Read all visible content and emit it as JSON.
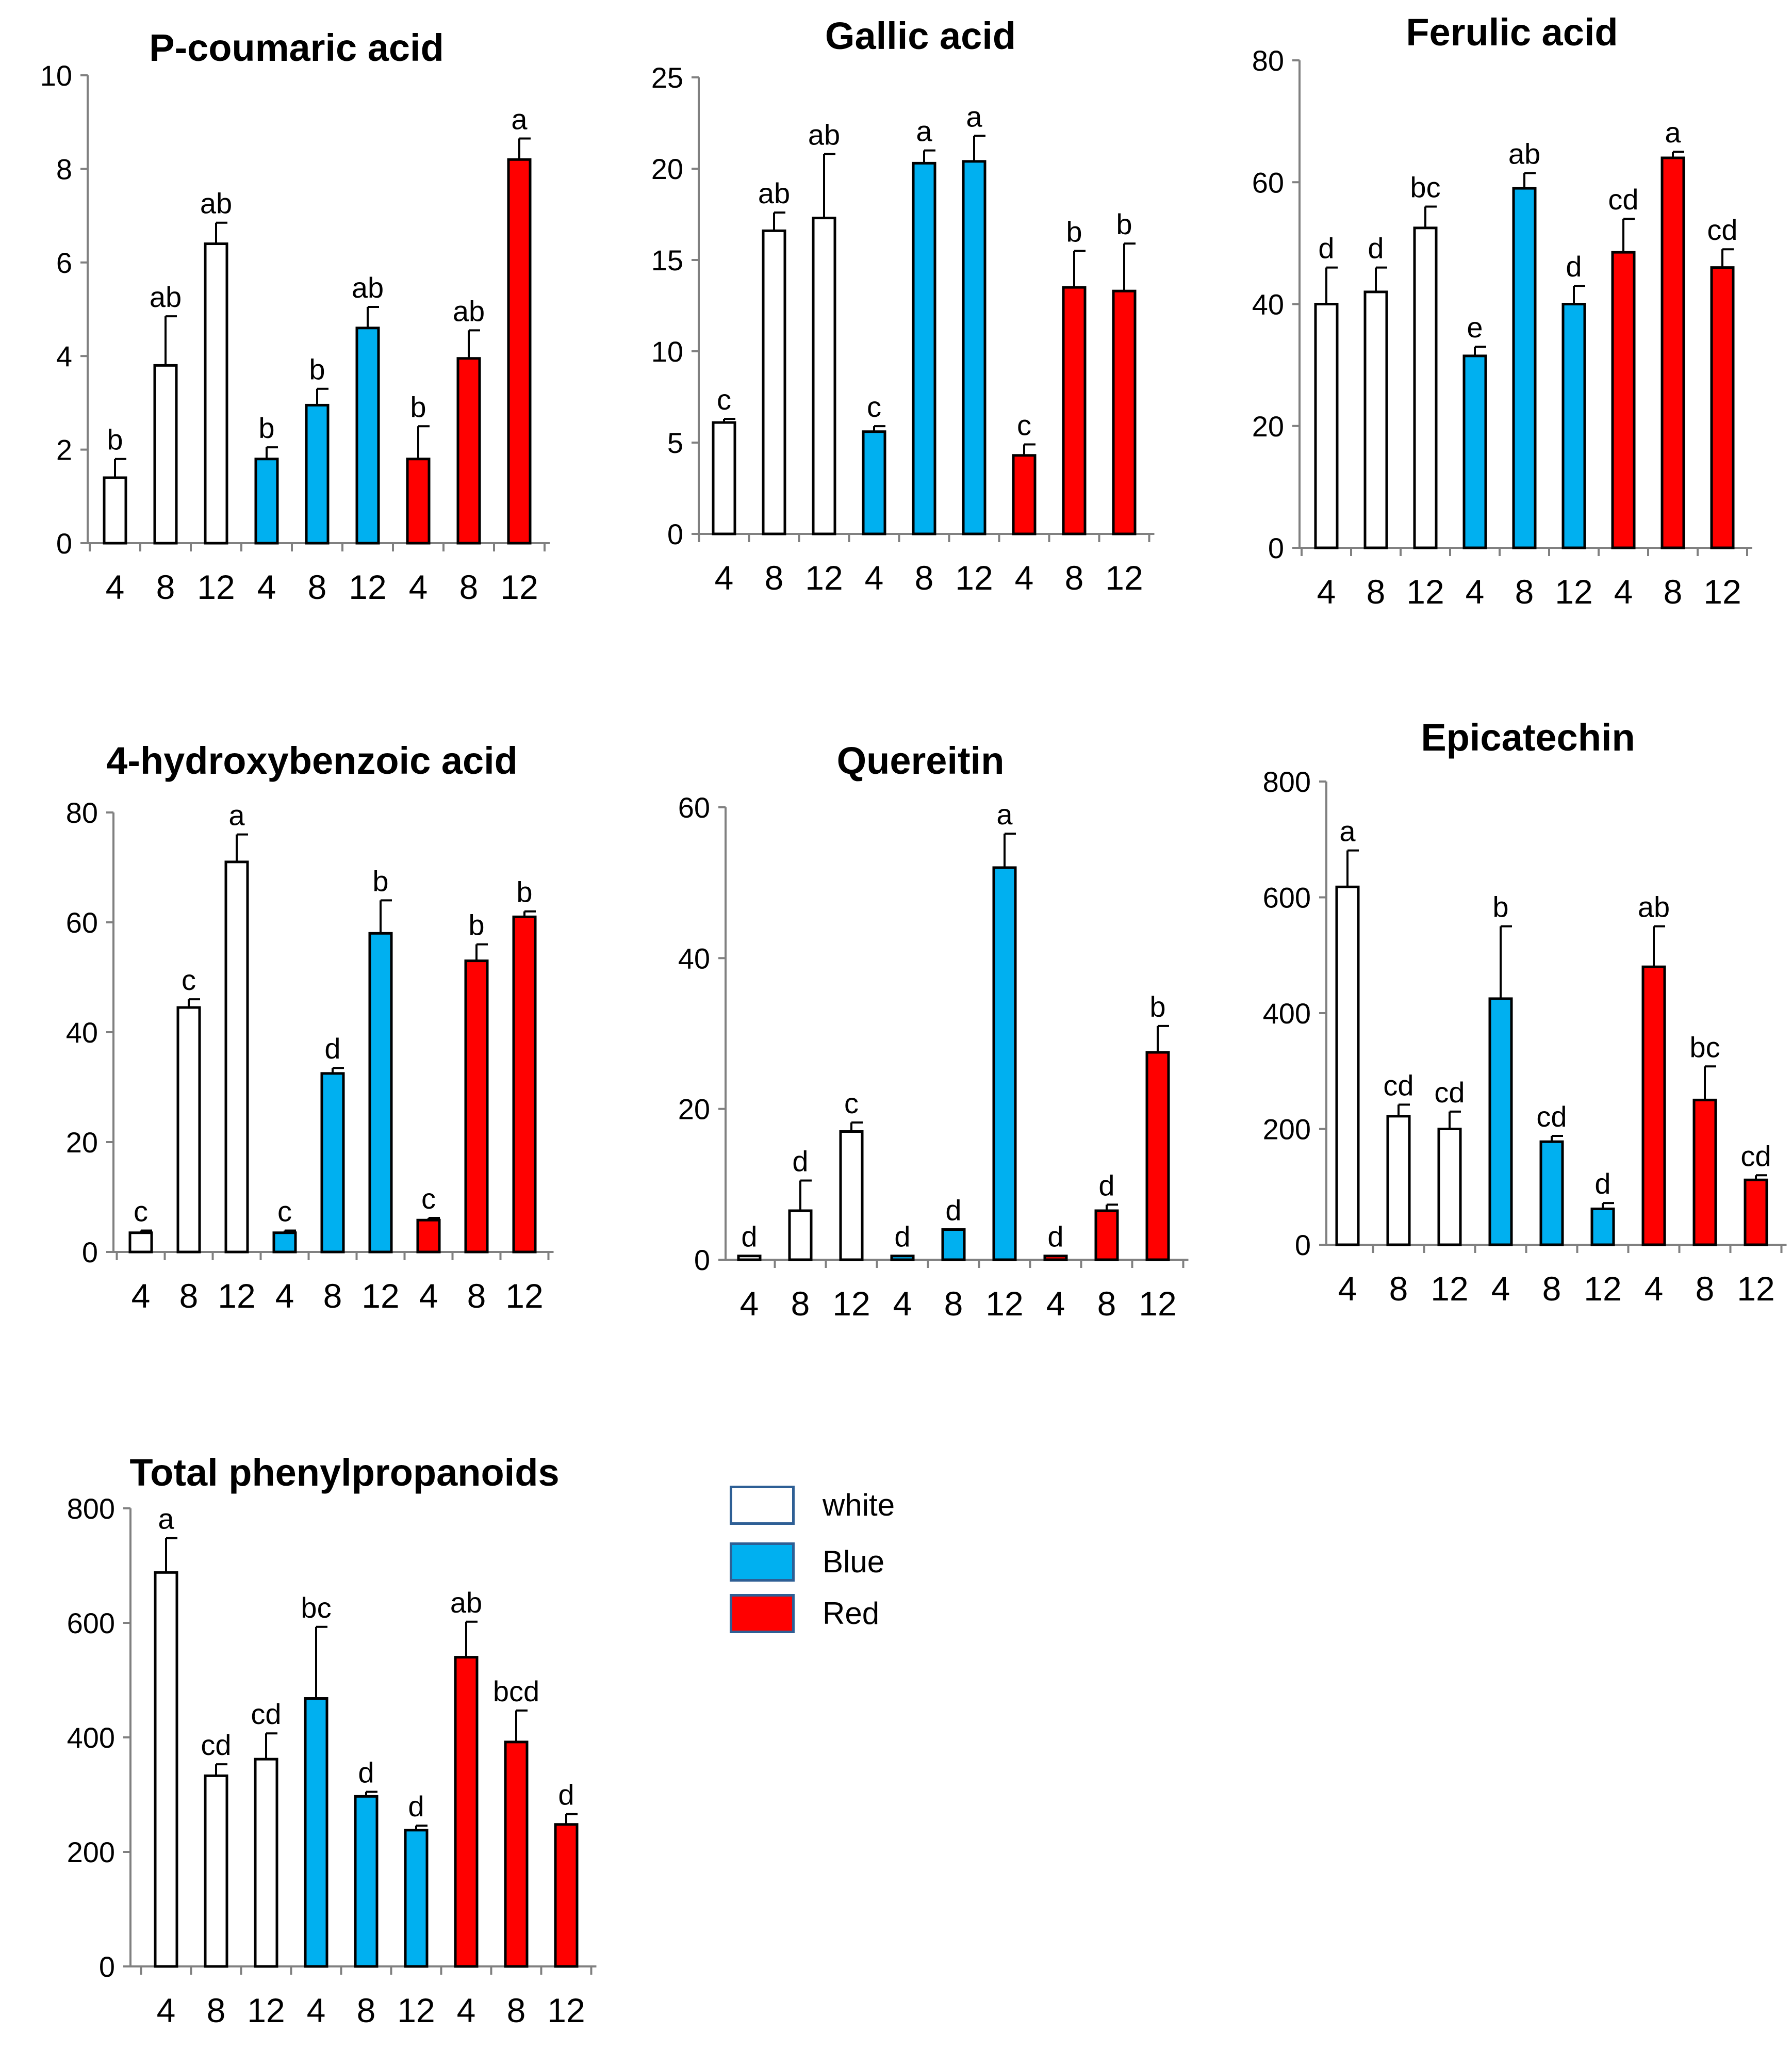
{
  "colors": {
    "white": "#ffffff",
    "blue": "#00b0f0",
    "red": "#ff0000",
    "axis": "#808080",
    "outline": "#000000",
    "legend_border": "#2e5f95"
  },
  "legend": {
    "items": [
      {
        "label": "white",
        "color": "#ffffff"
      },
      {
        "label": "Blue",
        "color": "#00b0f0"
      },
      {
        "label": "Red",
        "color": "#ff0000"
      }
    ]
  },
  "chart_data": [
    {
      "type": "bar",
      "title": "P-coumaric acid",
      "categories": [
        "4",
        "8",
        "12",
        "4",
        "8",
        "12",
        "4",
        "8",
        "12"
      ],
      "groups": [
        "white",
        "white",
        "white",
        "Blue",
        "Blue",
        "Blue",
        "Red",
        "Red",
        "Red"
      ],
      "values": [
        1.4,
        3.8,
        6.4,
        1.8,
        2.95,
        4.6,
        1.8,
        3.95,
        8.2
      ],
      "errors": [
        0.4,
        1.05,
        0.45,
        0.25,
        0.35,
        0.45,
        0.7,
        0.6,
        0.45
      ],
      "letters": [
        "b",
        "ab",
        "ab",
        "b",
        "b",
        "ab",
        "b",
        "ab",
        "a"
      ],
      "ylim": [
        0,
        10
      ],
      "yticks": [
        "0",
        "2",
        "4",
        "6",
        "8",
        "10"
      ]
    },
    {
      "type": "bar",
      "title": "Gallic acid",
      "categories": [
        "4",
        "8",
        "12",
        "4",
        "8",
        "12",
        "4",
        "8",
        "12"
      ],
      "groups": [
        "white",
        "white",
        "white",
        "Blue",
        "Blue",
        "Blue",
        "Red",
        "Red",
        "Red"
      ],
      "values": [
        6.1,
        16.6,
        17.3,
        5.6,
        20.3,
        20.4,
        4.3,
        13.5,
        13.3
      ],
      "errors": [
        0.2,
        1.0,
        3.5,
        0.3,
        0.7,
        1.4,
        0.6,
        2.0,
        2.6
      ],
      "letters": [
        "c",
        "ab",
        "ab",
        "c",
        "a",
        "a",
        "c",
        "b",
        "b"
      ],
      "ylim": [
        0,
        25
      ],
      "yticks": [
        "0",
        "5",
        "10",
        "15",
        "20",
        "25"
      ]
    },
    {
      "type": "bar",
      "title": "Ferulic acid",
      "categories": [
        "4",
        "8",
        "12",
        "4",
        "8",
        "12",
        "4",
        "8",
        "12"
      ],
      "groups": [
        "white",
        "white",
        "white",
        "Blue",
        "Blue",
        "Blue",
        "Red",
        "Red",
        "Red"
      ],
      "values": [
        40,
        42,
        52.5,
        31.5,
        59,
        40,
        48.5,
        64,
        46
      ],
      "errors": [
        6,
        4,
        3.5,
        1.5,
        2.5,
        3,
        5.5,
        1,
        3
      ],
      "letters": [
        "d",
        "d",
        "bc",
        "e",
        "ab",
        "d",
        "cd",
        "a",
        "cd"
      ],
      "ylim": [
        0,
        80
      ],
      "yticks": [
        "0",
        "20",
        "40",
        "60",
        "80"
      ]
    },
    {
      "type": "bar",
      "title": "4-hydroxybenzoic acid",
      "categories": [
        "4",
        "8",
        "12",
        "4",
        "8",
        "12",
        "4",
        "8",
        "12"
      ],
      "groups": [
        "white",
        "white",
        "white",
        "Blue",
        "Blue",
        "Blue",
        "Red",
        "Red",
        "Red"
      ],
      "values": [
        3.5,
        44.5,
        71,
        3.5,
        32.5,
        58,
        5.8,
        53,
        61
      ],
      "errors": [
        0.4,
        1.5,
        5,
        0.4,
        1,
        6,
        0.4,
        3,
        1
      ],
      "letters": [
        "c",
        "c",
        "a",
        "c",
        "d",
        "b",
        "c",
        "b",
        "b"
      ],
      "ylim": [
        0,
        80
      ],
      "yticks": [
        "0",
        "20",
        "40",
        "60",
        "80"
      ]
    },
    {
      "type": "bar",
      "title": "Quereitin",
      "categories": [
        "4",
        "8",
        "12",
        "4",
        "8",
        "12",
        "4",
        "8",
        "12"
      ],
      "groups": [
        "white",
        "white",
        "white",
        "Blue",
        "Blue",
        "Blue",
        "Red",
        "Red",
        "Red"
      ],
      "values": [
        0.5,
        6.5,
        17,
        0.5,
        4,
        52,
        0.5,
        6.5,
        27.5
      ],
      "errors": [
        0,
        4,
        1.2,
        0,
        0,
        4.5,
        0,
        0.8,
        3.5
      ],
      "letters": [
        "d",
        "d",
        "c",
        "d",
        "d",
        "a",
        "d",
        "d",
        "b"
      ],
      "ylim": [
        0,
        60
      ],
      "yticks": [
        "0",
        "20",
        "40",
        "60"
      ]
    },
    {
      "type": "bar",
      "title": "Epicatechin",
      "categories": [
        "4",
        "8",
        "12",
        "4",
        "8",
        "12",
        "4",
        "8",
        "12"
      ],
      "groups": [
        "white",
        "white",
        "white",
        "Blue",
        "Blue",
        "Blue",
        "Red",
        "Red",
        "Red"
      ],
      "values": [
        618,
        222,
        200,
        425,
        178,
        62,
        480,
        250,
        112
      ],
      "errors": [
        63,
        20,
        30,
        125,
        10,
        10,
        70,
        58,
        8
      ],
      "letters": [
        "a",
        "cd",
        "cd",
        "b",
        "cd",
        "d",
        "ab",
        "bc",
        "cd"
      ],
      "ylim": [
        0,
        800
      ],
      "yticks": [
        "0",
        "200",
        "400",
        "600",
        "800"
      ]
    },
    {
      "type": "bar",
      "title": "Total phenylpropanoids",
      "categories": [
        "4",
        "8",
        "12",
        "4",
        "8",
        "12",
        "4",
        "8",
        "12"
      ],
      "groups": [
        "white",
        "white",
        "white",
        "Blue",
        "Blue",
        "Blue",
        "Red",
        "Red",
        "Red"
      ],
      "values": [
        688,
        333,
        362,
        468,
        297,
        238,
        540,
        392,
        248
      ],
      "errors": [
        60,
        20,
        45,
        125,
        8,
        8,
        62,
        55,
        18
      ],
      "letters": [
        "a",
        "cd",
        "cd",
        "bc",
        "d",
        "d",
        "ab",
        "bcd",
        "d"
      ],
      "ylim": [
        0,
        800
      ],
      "yticks": [
        "0",
        "200",
        "400",
        "600",
        "800"
      ]
    }
  ]
}
